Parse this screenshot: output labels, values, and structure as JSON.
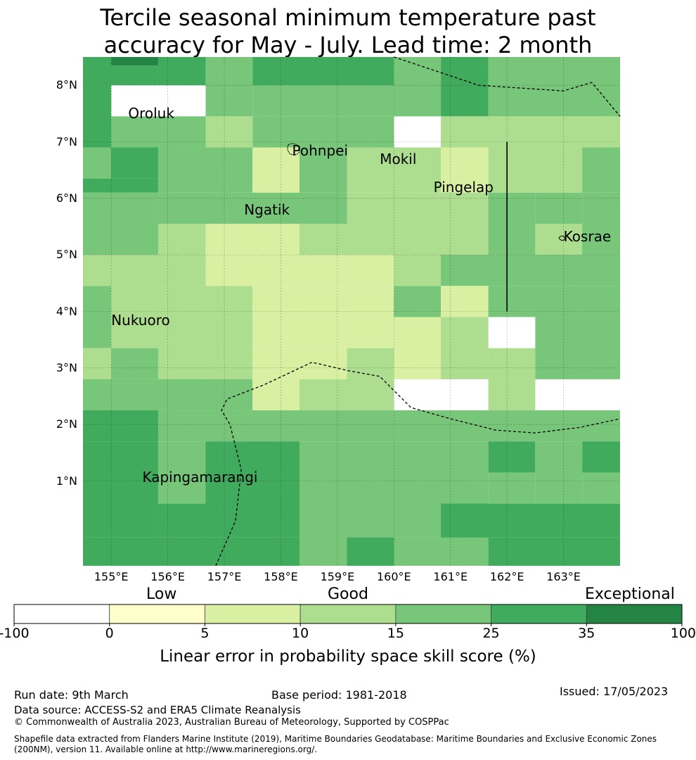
{
  "title": {
    "line1": "Tercile seasonal minimum temperature past",
    "line2": "accuracy for May - July. Lead time: 2 month"
  },
  "map": {
    "lon_ticks": [
      "155°E",
      "156°E",
      "157°E",
      "158°E",
      "159°E",
      "160°E",
      "161°E",
      "162°E",
      "163°E"
    ],
    "lat_ticks": [
      "8°N",
      "7°N",
      "6°N",
      "5°N",
      "4°N",
      "3°N",
      "2°N",
      "1°N"
    ],
    "extent": {
      "lon_min": 154.5,
      "lon_max": 164.0,
      "lat_min": -0.5,
      "lat_max": 8.5
    },
    "places": [
      {
        "name": "Oroluk",
        "lon": 155.3,
        "lat": 7.5
      },
      {
        "name": "Pohnpei",
        "lon": 158.2,
        "lat": 6.85
      },
      {
        "name": "Mokil",
        "lon": 159.75,
        "lat": 6.7
      },
      {
        "name": "Pingelap",
        "lon": 160.7,
        "lat": 6.2
      },
      {
        "name": "Ngatik",
        "lon": 157.35,
        "lat": 5.8
      },
      {
        "name": "Kosrae",
        "lon": 163.0,
        "lat": 5.32
      },
      {
        "name": "Nukuoro",
        "lon": 155.0,
        "lat": 3.85
      },
      {
        "name": "Kapingamarangi",
        "lon": 155.55,
        "lat": 1.07
      }
    ],
    "grid_cells": [
      {
        "lon": 154.5,
        "lat": 8.0,
        "w": 0.5,
        "h": 0.5,
        "score": 30
      },
      {
        "lon": 155.0,
        "lat": 8.35,
        "w": 0.83,
        "h": 0.15,
        "score": 40
      },
      {
        "lon": 155.0,
        "lat": 8.0,
        "w": 0.83,
        "h": 0.35,
        "score": 30
      },
      {
        "lon": 155.83,
        "lat": 8.0,
        "w": 0.84,
        "h": 0.5,
        "score": 30
      },
      {
        "lon": 156.67,
        "lat": 7.45,
        "w": 0.83,
        "h": 1.05,
        "score": 20
      },
      {
        "lon": 157.5,
        "lat": 8.0,
        "w": 2.5,
        "h": 0.5,
        "score": 30
      },
      {
        "lon": 157.5,
        "lat": 7.45,
        "w": 2.5,
        "h": 0.55,
        "score": 20
      },
      {
        "lon": 160.0,
        "lat": 7.45,
        "w": 0.83,
        "h": 1.05,
        "score": 20
      },
      {
        "lon": 160.83,
        "lat": 7.45,
        "w": 0.84,
        "h": 1.05,
        "score": 30
      },
      {
        "lon": 161.67,
        "lat": 7.45,
        "w": 2.33,
        "h": 1.05,
        "score": 20
      },
      {
        "lon": 160.83,
        "lat": 6.9,
        "w": 3.17,
        "h": 0.55,
        "score": 12
      },
      {
        "lon": 154.5,
        "lat": 6.9,
        "w": 0.5,
        "h": 1.1,
        "score": 30
      },
      {
        "lon": 154.5,
        "lat": 6.35,
        "w": 1.33,
        "h": 0.55,
        "score": 20
      },
      {
        "lon": 155.0,
        "lat": 6.9,
        "w": 1.67,
        "h": 0.55,
        "score": 20
      },
      {
        "lon": 154.5,
        "lat": 6.1,
        "w": 1.33,
        "h": 0.25,
        "score": 30
      },
      {
        "lon": 155.0,
        "lat": 6.35,
        "w": 0.83,
        "h": 0.55,
        "score": 30
      },
      {
        "lon": 156.67,
        "lat": 6.9,
        "w": 0.83,
        "h": 0.55,
        "score": 12
      },
      {
        "lon": 155.83,
        "lat": 6.1,
        "w": 1.67,
        "h": 0.8,
        "score": 20
      },
      {
        "lon": 157.5,
        "lat": 6.9,
        "w": 2.5,
        "h": 0.55,
        "score": 20
      },
      {
        "lon": 157.5,
        "lat": 6.1,
        "w": 0.83,
        "h": 0.8,
        "score": 8
      },
      {
        "lon": 158.33,
        "lat": 6.1,
        "w": 0.84,
        "h": 0.8,
        "score": 20
      },
      {
        "lon": 159.17,
        "lat": 6.1,
        "w": 1.66,
        "h": 0.8,
        "score": 12
      },
      {
        "lon": 160.83,
        "lat": 6.1,
        "w": 0.84,
        "h": 0.8,
        "score": 8
      },
      {
        "lon": 161.67,
        "lat": 6.1,
        "w": 1.66,
        "h": 0.8,
        "score": 12
      },
      {
        "lon": 163.33,
        "lat": 6.1,
        "w": 0.67,
        "h": 0.8,
        "score": 20
      },
      {
        "lon": 154.5,
        "lat": 5.0,
        "w": 1.33,
        "h": 1.1,
        "score": 20
      },
      {
        "lon": 155.83,
        "lat": 5.0,
        "w": 0.84,
        "h": 0.55,
        "score": 12
      },
      {
        "lon": 155.83,
        "lat": 5.55,
        "w": 2.5,
        "h": 0.55,
        "score": 20
      },
      {
        "lon": 156.67,
        "lat": 5.0,
        "w": 1.66,
        "h": 0.55,
        "score": 8
      },
      {
        "lon": 158.33,
        "lat": 5.0,
        "w": 1.67,
        "h": 0.55,
        "score": 12
      },
      {
        "lon": 158.33,
        "lat": 5.55,
        "w": 0.84,
        "h": 0.55,
        "score": 20
      },
      {
        "lon": 159.17,
        "lat": 5.0,
        "w": 2.5,
        "h": 1.1,
        "score": 12
      },
      {
        "lon": 161.67,
        "lat": 5.0,
        "w": 0.83,
        "h": 1.1,
        "score": 20
      },
      {
        "lon": 162.5,
        "lat": 5.0,
        "w": 0.83,
        "h": 1.1,
        "score": 20
      },
      {
        "lon": 162.5,
        "lat": 5.0,
        "w": 0.83,
        "h": 0.55,
        "score": 12
      },
      {
        "lon": 163.33,
        "lat": 5.0,
        "w": 0.67,
        "h": 1.1,
        "score": 20
      },
      {
        "lon": 154.5,
        "lat": 4.45,
        "w": 2.17,
        "h": 0.55,
        "score": 12
      },
      {
        "lon": 156.67,
        "lat": 4.45,
        "w": 3.33,
        "h": 0.55,
        "score": 8
      },
      {
        "lon": 160.0,
        "lat": 4.45,
        "w": 0.83,
        "h": 0.55,
        "score": 12
      },
      {
        "lon": 160.83,
        "lat": 4.45,
        "w": 3.17,
        "h": 0.55,
        "score": 20
      },
      {
        "lon": 154.5,
        "lat": 3.35,
        "w": 0.5,
        "h": 1.1,
        "score": 20
      },
      {
        "lon": 155.0,
        "lat": 3.9,
        "w": 2.5,
        "h": 0.55,
        "score": 12
      },
      {
        "lon": 155.0,
        "lat": 3.35,
        "w": 0.83,
        "h": 0.55,
        "score": 12
      },
      {
        "lon": 157.5,
        "lat": 3.35,
        "w": 2.5,
        "h": 1.1,
        "score": 8
      },
      {
        "lon": 160.0,
        "lat": 3.9,
        "w": 0.83,
        "h": 0.55,
        "score": 20
      },
      {
        "lon": 160.83,
        "lat": 3.9,
        "w": 0.84,
        "h": 0.55,
        "score": 8
      },
      {
        "lon": 161.67,
        "lat": 3.9,
        "w": 2.33,
        "h": 0.55,
        "score": 20
      },
      {
        "lon": 154.5,
        "lat": 2.8,
        "w": 0.5,
        "h": 0.55,
        "score": 12
      },
      {
        "lon": 155.0,
        "lat": 2.8,
        "w": 0.83,
        "h": 0.55,
        "score": 20
      },
      {
        "lon": 155.83,
        "lat": 2.8,
        "w": 1.67,
        "h": 1.1,
        "score": 12
      },
      {
        "lon": 157.5,
        "lat": 2.8,
        "w": 1.67,
        "h": 0.55,
        "score": 8
      },
      {
        "lon": 159.17,
        "lat": 2.8,
        "w": 0.83,
        "h": 0.55,
        "score": 12
      },
      {
        "lon": 160.0,
        "lat": 2.8,
        "w": 0.83,
        "h": 1.1,
        "score": 8
      },
      {
        "lon": 160.83,
        "lat": 2.8,
        "w": 0.84,
        "h": 1.1,
        "score": 12
      },
      {
        "lon": 161.67,
        "lat": 2.8,
        "w": 0.83,
        "h": 0.55,
        "score": 12
      },
      {
        "lon": 162.5,
        "lat": 2.8,
        "w": 1.5,
        "h": 1.1,
        "score": 20
      },
      {
        "lon": 154.5,
        "lat": 2.25,
        "w": 2.17,
        "h": 0.55,
        "score": 20
      },
      {
        "lon": 156.67,
        "lat": 2.25,
        "w": 0.83,
        "h": 0.55,
        "score": 20
      },
      {
        "lon": 157.5,
        "lat": 2.25,
        "w": 0.83,
        "h": 0.55,
        "score": 8
      },
      {
        "lon": 158.33,
        "lat": 2.25,
        "w": 1.67,
        "h": 0.55,
        "score": 12
      },
      {
        "lon": 161.67,
        "lat": 2.25,
        "w": 0.83,
        "h": 0.55,
        "score": 12
      },
      {
        "lon": 154.5,
        "lat": 1.7,
        "w": 5.5,
        "h": 0.55,
        "score": 20
      },
      {
        "lon": 154.5,
        "lat": 1.7,
        "w": 1.33,
        "h": 0.55,
        "score": 30
      },
      {
        "lon": 160.0,
        "lat": 1.7,
        "w": 4.0,
        "h": 0.55,
        "score": 20
      },
      {
        "lon": 154.5,
        "lat": 0.0,
        "w": 1.33,
        "h": 1.7,
        "score": 30
      },
      {
        "lon": 155.83,
        "lat": 0.6,
        "w": 0.84,
        "h": 1.1,
        "score": 20
      },
      {
        "lon": 156.67,
        "lat": 0.0,
        "w": 1.66,
        "h": 1.7,
        "score": 30
      },
      {
        "lon": 158.33,
        "lat": 0.0,
        "w": 3.34,
        "h": 1.7,
        "score": 20
      },
      {
        "lon": 161.67,
        "lat": 1.15,
        "w": 0.83,
        "h": 0.55,
        "score": 30
      },
      {
        "lon": 162.5,
        "lat": 0.6,
        "w": 0.83,
        "h": 1.1,
        "score": 20
      },
      {
        "lon": 163.33,
        "lat": 1.15,
        "w": 0.67,
        "h": 0.55,
        "score": 30
      },
      {
        "lon": 163.33,
        "lat": 0.6,
        "w": 0.67,
        "h": 0.55,
        "score": 20
      },
      {
        "lon": 161.67,
        "lat": 0.6,
        "w": 0.83,
        "h": 0.55,
        "score": 20
      },
      {
        "lon": 154.5,
        "lat": -0.5,
        "w": 5.5,
        "h": 0.5,
        "score": 30
      },
      {
        "lon": 155.83,
        "lat": 0.0,
        "w": 0.84,
        "h": 0.6,
        "score": 30
      },
      {
        "lon": 158.33,
        "lat": -0.5,
        "w": 0.84,
        "h": 1.1,
        "score": 20
      },
      {
        "lon": 159.17,
        "lat": -0.5,
        "w": 0.83,
        "h": 0.5,
        "score": 30
      },
      {
        "lon": 160.0,
        "lat": -0.5,
        "w": 1.67,
        "h": 0.5,
        "score": 20
      },
      {
        "lon": 160.83,
        "lat": 0.0,
        "w": 3.17,
        "h": 0.6,
        "score": 30
      },
      {
        "lon": 161.67,
        "lat": -0.5,
        "w": 2.33,
        "h": 0.5,
        "score": 30
      }
    ],
    "eez_boundaries": [
      [
        [
          160.0,
          8.5
        ],
        [
          161.5,
          8.0
        ],
        [
          163.0,
          7.9
        ],
        [
          163.5,
          8.05
        ],
        [
          164.0,
          7.45
        ]
      ],
      [
        [
          156.85,
          -0.5
        ],
        [
          157.2,
          0.3
        ],
        [
          157.3,
          1.2
        ],
        [
          157.1,
          2.0
        ],
        [
          156.95,
          2.25
        ],
        [
          157.05,
          2.45
        ],
        [
          157.7,
          2.7
        ],
        [
          158.55,
          3.1
        ],
        [
          159.2,
          2.95
        ],
        [
          159.75,
          2.85
        ],
        [
          160.3,
          2.3
        ],
        [
          161.0,
          2.1
        ],
        [
          161.8,
          1.9
        ],
        [
          162.5,
          1.85
        ],
        [
          163.3,
          1.95
        ],
        [
          164.0,
          2.1
        ]
      ]
    ],
    "vertical_line": {
      "lon": 162.0,
      "lat_from": 4.0,
      "lat_to": 7.0
    }
  },
  "colorbar": {
    "category_labels": [
      "Low",
      "Good",
      "Exceptional"
    ],
    "ticks": [
      "-100",
      "0",
      "5",
      "10",
      "15",
      "25",
      "35",
      "100"
    ],
    "colors": [
      "#ffffff",
      "#ffffcc",
      "#d9f0a3",
      "#addd8e",
      "#78c679",
      "#41ab5d",
      "#238443"
    ],
    "label": "Linear error in probability space skill score (%)"
  },
  "footer": {
    "run_date": "Run date: 9th March",
    "base_period": "Base period: 1981-2018",
    "issued": "Issued: 17/05/2023",
    "data_source": "Data source: ACCESS-S2 and ERA5 Climate Reanalysis",
    "copyright": "© Commonwealth of Australia 2023, Australian Bureau of Meteorology, Supported by COSPPac",
    "shapefile_line1": "Shapefile data extracted from Flanders Marine Institute (2019), Maritime Boundaries Geodatabase: Maritime Boundaries and Exclusive Economic Zones",
    "shapefile_line2": "(200NM), version 11. Available online at http://www.marineregions.org/."
  }
}
